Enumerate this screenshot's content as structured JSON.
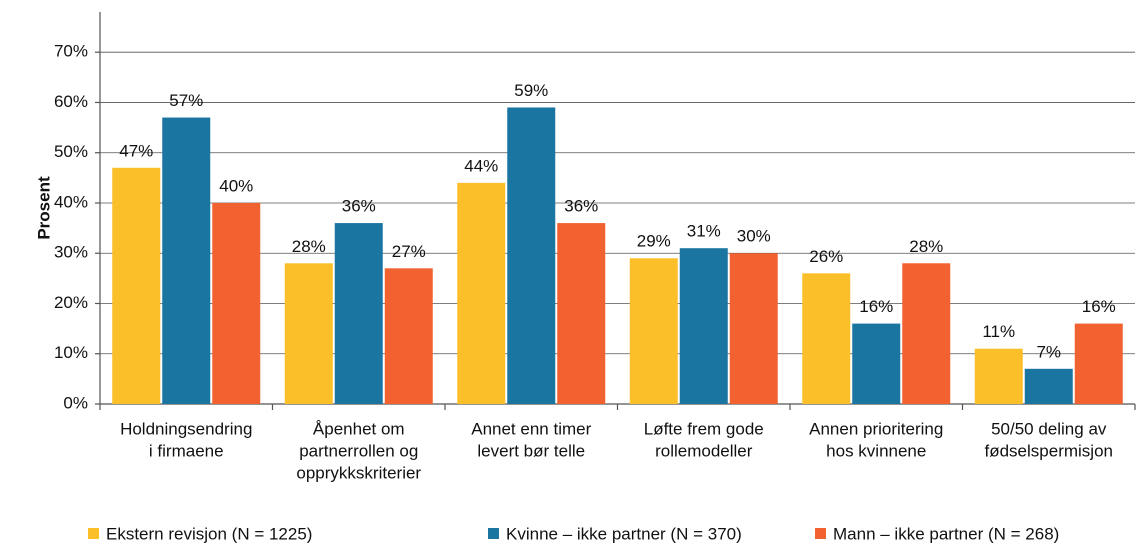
{
  "chart_data": {
    "type": "bar",
    "y_label": "Prosent",
    "categories": [
      [
        "Holdningsendring",
        "i firmaene"
      ],
      [
        "Åpenhet om",
        "partnerrollen og",
        "opprykkskriterier"
      ],
      [
        "Annet enn timer",
        "levert bør telle"
      ],
      [
        "Løfte frem gode",
        "rollemodeller"
      ],
      [
        "Annen prioritering",
        "hos kvinnene"
      ],
      [
        "50/50 deling av",
        "fødselspermisjon"
      ]
    ],
    "series": [
      {
        "name": "Ekstern revisjon (N = 1225)",
        "color": "#FBBF2A",
        "values": [
          47,
          28,
          44,
          29,
          26,
          11
        ],
        "value_labels": [
          "47%",
          "28%",
          "44%",
          "29%",
          "26%",
          "11%"
        ]
      },
      {
        "name": "Kvinne – ikke partner (N = 370)",
        "color": "#1A75A0",
        "values": [
          57,
          36,
          59,
          31,
          16,
          7
        ],
        "value_labels": [
          "57%",
          "36%",
          "59%",
          "31%",
          "16%",
          "7%"
        ]
      },
      {
        "name": "Mann – ikke partner (N = 268)",
        "color": "#F26230",
        "values": [
          40,
          27,
          36,
          30,
          28,
          16
        ],
        "value_labels": [
          "40%",
          "27%",
          "36%",
          "30%",
          "28%",
          "16%"
        ]
      }
    ],
    "ylim": [
      0,
      78
    ],
    "yticks": [
      {
        "value": 0,
        "label": "0%"
      },
      {
        "value": 10,
        "label": "10%"
      },
      {
        "value": 20,
        "label": "20%"
      },
      {
        "value": 30,
        "label": "30%"
      },
      {
        "value": 40,
        "label": "40%"
      },
      {
        "value": 50,
        "label": "50%"
      },
      {
        "value": 60,
        "label": "60%"
      },
      {
        "value": 70,
        "label": "70%"
      }
    ],
    "grid": true,
    "legend": "bottom"
  }
}
